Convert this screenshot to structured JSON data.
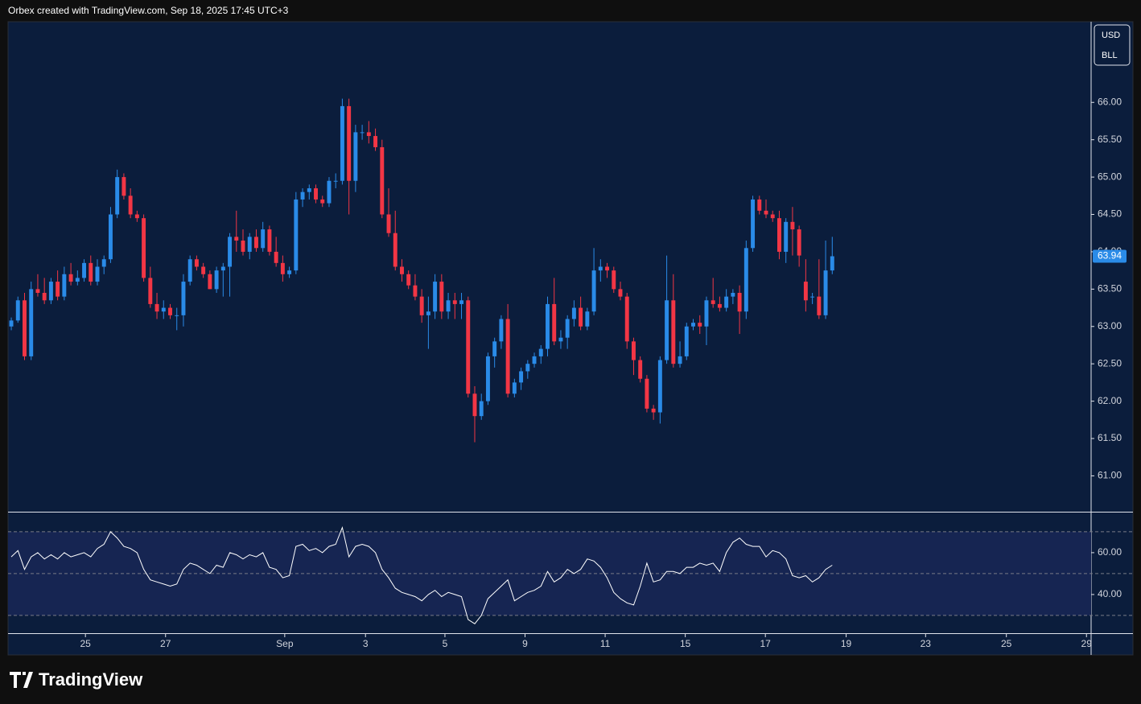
{
  "header": "Orbex created with TradingView.com, Sep 18, 2025 17:45 UTC+3",
  "currency": "USD",
  "unit": "BLL",
  "brand": "TradingView",
  "chart_data": {
    "type": "candlestick",
    "up_color": "#2a8be8",
    "down_color": "#f23645",
    "ylim": [
      60.52,
      67.08
    ],
    "yticks": [
      {
        "value": 61,
        "label": "61.00"
      },
      {
        "value": 61.5,
        "label": "61.50"
      },
      {
        "value": 62,
        "label": "62.00"
      },
      {
        "value": 62.5,
        "label": "62.50"
      },
      {
        "value": 63,
        "label": "63.00"
      },
      {
        "value": 63.5,
        "label": "63.50"
      },
      {
        "value": 64,
        "label": "64.00"
      },
      {
        "value": 64.5,
        "label": "64.50"
      },
      {
        "value": 65,
        "label": "65.00"
      },
      {
        "value": 65.5,
        "label": "65.50"
      },
      {
        "value": 66,
        "label": "66.00"
      }
    ],
    "xlim": [
      -0.49,
      163.1
    ],
    "xticks": [
      {
        "value": 11.2,
        "label": "25"
      },
      {
        "value": 23.3,
        "label": "27"
      },
      {
        "value": 41.3,
        "label": "Sep"
      },
      {
        "value": 53.5,
        "label": "3"
      },
      {
        "value": 65.5,
        "label": "5"
      },
      {
        "value": 77.6,
        "label": "9"
      },
      {
        "value": 89.7,
        "label": "11"
      },
      {
        "value": 101.8,
        "label": "15"
      },
      {
        "value": 113.9,
        "label": "17"
      },
      {
        "value": 126.1,
        "label": "19"
      },
      {
        "value": 138.1,
        "label": "23"
      },
      {
        "value": 150.3,
        "label": "25"
      },
      {
        "value": 162.4,
        "label": "29"
      }
    ],
    "ohlc": [
      [
        63.0,
        63.12,
        62.95,
        63.08
      ],
      [
        63.08,
        63.4,
        63.05,
        63.35
      ],
      [
        63.35,
        63.45,
        62.55,
        62.6
      ],
      [
        62.6,
        63.6,
        62.55,
        63.5
      ],
      [
        63.5,
        63.7,
        63.4,
        63.45
      ],
      [
        63.45,
        63.65,
        63.3,
        63.35
      ],
      [
        63.35,
        63.65,
        63.3,
        63.6
      ],
      [
        63.6,
        63.75,
        63.35,
        63.4
      ],
      [
        63.4,
        63.8,
        63.35,
        63.7
      ],
      [
        63.7,
        63.85,
        63.55,
        63.6
      ],
      [
        63.6,
        63.75,
        63.55,
        63.65
      ],
      [
        63.65,
        63.9,
        63.6,
        63.85
      ],
      [
        63.85,
        63.95,
        63.55,
        63.6
      ],
      [
        63.6,
        63.9,
        63.55,
        63.8
      ],
      [
        63.8,
        63.95,
        63.7,
        63.9
      ],
      [
        63.9,
        64.6,
        63.85,
        64.5
      ],
      [
        64.5,
        65.1,
        64.45,
        65.0
      ],
      [
        65.0,
        65.05,
        64.7,
        64.75
      ],
      [
        64.75,
        64.85,
        64.45,
        64.5
      ],
      [
        64.5,
        64.55,
        64.4,
        64.45
      ],
      [
        64.45,
        64.5,
        63.6,
        63.65
      ],
      [
        63.65,
        63.8,
        63.25,
        63.3
      ],
      [
        63.3,
        63.45,
        63.1,
        63.2
      ],
      [
        63.2,
        63.35,
        63.1,
        63.25
      ],
      [
        63.25,
        63.3,
        63.1,
        63.15
      ],
      [
        63.15,
        63.25,
        62.95,
        63.15
      ],
      [
        63.15,
        63.7,
        63.0,
        63.6
      ],
      [
        63.6,
        63.95,
        63.55,
        63.9
      ],
      [
        63.9,
        63.95,
        63.75,
        63.8
      ],
      [
        63.8,
        63.85,
        63.65,
        63.7
      ],
      [
        63.7,
        63.75,
        63.5,
        63.5
      ],
      [
        63.5,
        63.8,
        63.45,
        63.75
      ],
      [
        63.75,
        63.85,
        63.4,
        63.8
      ],
      [
        63.8,
        64.25,
        63.4,
        64.2
      ],
      [
        64.2,
        64.55,
        64.0,
        64.15
      ],
      [
        64.15,
        64.3,
        63.95,
        64.0
      ],
      [
        64.0,
        64.25,
        63.9,
        64.2
      ],
      [
        64.2,
        64.3,
        64.0,
        64.05
      ],
      [
        64.05,
        64.4,
        64.0,
        64.3
      ],
      [
        64.3,
        64.35,
        63.95,
        64.0
      ],
      [
        64.0,
        64.2,
        63.8,
        63.85
      ],
      [
        63.85,
        63.95,
        63.6,
        63.7
      ],
      [
        63.7,
        63.8,
        63.65,
        63.75
      ],
      [
        63.75,
        64.8,
        63.7,
        64.7
      ],
      [
        64.7,
        64.85,
        64.6,
        64.8
      ],
      [
        64.8,
        64.9,
        64.7,
        64.85
      ],
      [
        64.85,
        64.9,
        64.65,
        64.7
      ],
      [
        64.7,
        64.75,
        64.6,
        64.65
      ],
      [
        64.65,
        65.0,
        64.6,
        64.95
      ],
      [
        64.95,
        65.05,
        64.85,
        64.95
      ],
      [
        64.95,
        66.05,
        64.9,
        65.95
      ],
      [
        65.95,
        66.05,
        64.5,
        64.95
      ],
      [
        64.95,
        65.7,
        64.8,
        65.6
      ],
      [
        65.6,
        65.7,
        65.5,
        65.6
      ],
      [
        65.6,
        65.75,
        65.45,
        65.55
      ],
      [
        65.55,
        65.65,
        65.35,
        65.4
      ],
      [
        65.4,
        65.5,
        64.45,
        64.5
      ],
      [
        64.5,
        64.85,
        64.2,
        64.25
      ],
      [
        64.25,
        64.55,
        63.75,
        63.8
      ],
      [
        63.8,
        63.9,
        63.6,
        63.7
      ],
      [
        63.7,
        63.75,
        63.5,
        63.55
      ],
      [
        63.55,
        63.7,
        63.35,
        63.4
      ],
      [
        63.4,
        63.5,
        63.05,
        63.15
      ],
      [
        63.15,
        63.4,
        62.7,
        63.2
      ],
      [
        63.2,
        63.7,
        63.1,
        63.6
      ],
      [
        63.6,
        63.7,
        63.1,
        63.2
      ],
      [
        63.2,
        63.45,
        63.1,
        63.35
      ],
      [
        63.35,
        63.45,
        63.1,
        63.3
      ],
      [
        63.3,
        63.45,
        63.1,
        63.35
      ],
      [
        63.35,
        63.4,
        62.05,
        62.1
      ],
      [
        62.1,
        62.2,
        61.45,
        61.8
      ],
      [
        61.8,
        62.1,
        61.75,
        62.0
      ],
      [
        62.0,
        62.65,
        61.95,
        62.6
      ],
      [
        62.6,
        62.85,
        62.45,
        62.8
      ],
      [
        62.8,
        63.15,
        62.7,
        63.1
      ],
      [
        63.1,
        63.3,
        62.05,
        62.1
      ],
      [
        62.1,
        62.3,
        62.05,
        62.25
      ],
      [
        62.25,
        62.45,
        62.15,
        62.4
      ],
      [
        62.4,
        62.55,
        62.3,
        62.5
      ],
      [
        62.5,
        62.65,
        62.45,
        62.6
      ],
      [
        62.6,
        62.75,
        62.5,
        62.7
      ],
      [
        62.7,
        63.4,
        62.6,
        63.3
      ],
      [
        63.3,
        63.65,
        62.75,
        62.8
      ],
      [
        62.8,
        62.95,
        62.7,
        62.85
      ],
      [
        62.85,
        63.15,
        62.7,
        63.1
      ],
      [
        63.1,
        63.35,
        63.0,
        63.25
      ],
      [
        63.25,
        63.4,
        62.95,
        63.0
      ],
      [
        63.0,
        63.25,
        62.95,
        63.2
      ],
      [
        63.2,
        64.05,
        63.15,
        63.75
      ],
      [
        63.75,
        63.9,
        63.6,
        63.8
      ],
      [
        63.8,
        63.85,
        63.65,
        63.75
      ],
      [
        63.75,
        63.8,
        63.45,
        63.5
      ],
      [
        63.5,
        63.6,
        63.35,
        63.4
      ],
      [
        63.4,
        63.45,
        62.7,
        62.8
      ],
      [
        62.8,
        62.85,
        62.35,
        62.55
      ],
      [
        62.55,
        62.6,
        62.25,
        62.3
      ],
      [
        62.3,
        62.35,
        61.85,
        61.9
      ],
      [
        61.9,
        61.95,
        61.75,
        61.85
      ],
      [
        61.85,
        62.6,
        61.7,
        62.55
      ],
      [
        62.55,
        63.95,
        62.5,
        63.35
      ],
      [
        63.35,
        63.7,
        62.45,
        62.5
      ],
      [
        62.5,
        62.8,
        62.45,
        62.6
      ],
      [
        62.6,
        63.05,
        62.55,
        63.0
      ],
      [
        63.0,
        63.1,
        62.95,
        63.05
      ],
      [
        63.05,
        63.15,
        62.9,
        63.0
      ],
      [
        63.0,
        63.4,
        62.75,
        63.35
      ],
      [
        63.35,
        63.65,
        63.25,
        63.3
      ],
      [
        63.3,
        63.4,
        63.2,
        63.25
      ],
      [
        63.25,
        63.5,
        63.2,
        63.4
      ],
      [
        63.4,
        63.5,
        63.3,
        63.45
      ],
      [
        63.45,
        63.55,
        62.9,
        63.2
      ],
      [
        63.2,
        64.15,
        63.1,
        64.05
      ],
      [
        64.05,
        64.75,
        64.0,
        64.7
      ],
      [
        64.7,
        64.75,
        64.5,
        64.55
      ],
      [
        64.55,
        64.7,
        64.45,
        64.5
      ],
      [
        64.5,
        64.55,
        64.4,
        64.45
      ],
      [
        64.45,
        64.55,
        63.9,
        64.0
      ],
      [
        64.0,
        64.45,
        63.85,
        64.4
      ],
      [
        64.4,
        64.6,
        63.95,
        64.3
      ],
      [
        64.3,
        64.35,
        63.8,
        63.95
      ],
      [
        63.6,
        63.9,
        63.2,
        63.35
      ],
      [
        63.4,
        63.45,
        63.3,
        63.4
      ],
      [
        63.4,
        63.9,
        63.1,
        63.15
      ],
      [
        63.15,
        64.15,
        63.1,
        63.75
      ],
      [
        63.75,
        64.2,
        63.7,
        63.94
      ]
    ],
    "rsi": {
      "type": "line",
      "color": "#ffffff",
      "band_color": "#162552",
      "ylim": [
        21.5,
        79.2
      ],
      "yticks": [
        {
          "value": 40,
          "label": "40.00"
        },
        {
          "value": 60,
          "label": "60.00"
        }
      ],
      "levels": [
        70,
        50,
        30
      ],
      "values": [
        58,
        61,
        52,
        58,
        60,
        57,
        59,
        57,
        60,
        58,
        59,
        60,
        58,
        62,
        64,
        70,
        67,
        63,
        62,
        60,
        52,
        47,
        46,
        45,
        44,
        45,
        52,
        55,
        54,
        52,
        50,
        54,
        53,
        60,
        59,
        57,
        59,
        58,
        60,
        53,
        52,
        48,
        49,
        63,
        64,
        61,
        62,
        60,
        63,
        64,
        72,
        58,
        63,
        64,
        63,
        60,
        52,
        48,
        43,
        41,
        40,
        39,
        37,
        40,
        42,
        39,
        41,
        40,
        39,
        28,
        26,
        30,
        38,
        41,
        44,
        47,
        37,
        39,
        41,
        42,
        44,
        51,
        46,
        48,
        52,
        50,
        52,
        57,
        56,
        53,
        48,
        41,
        38,
        36,
        35,
        44,
        55,
        46,
        47,
        51,
        51,
        50,
        53,
        53,
        55,
        54,
        55,
        51,
        60,
        65,
        67,
        64,
        63,
        63,
        58,
        61,
        60,
        57,
        49,
        48,
        49,
        46,
        48,
        52,
        54
      ]
    }
  }
}
